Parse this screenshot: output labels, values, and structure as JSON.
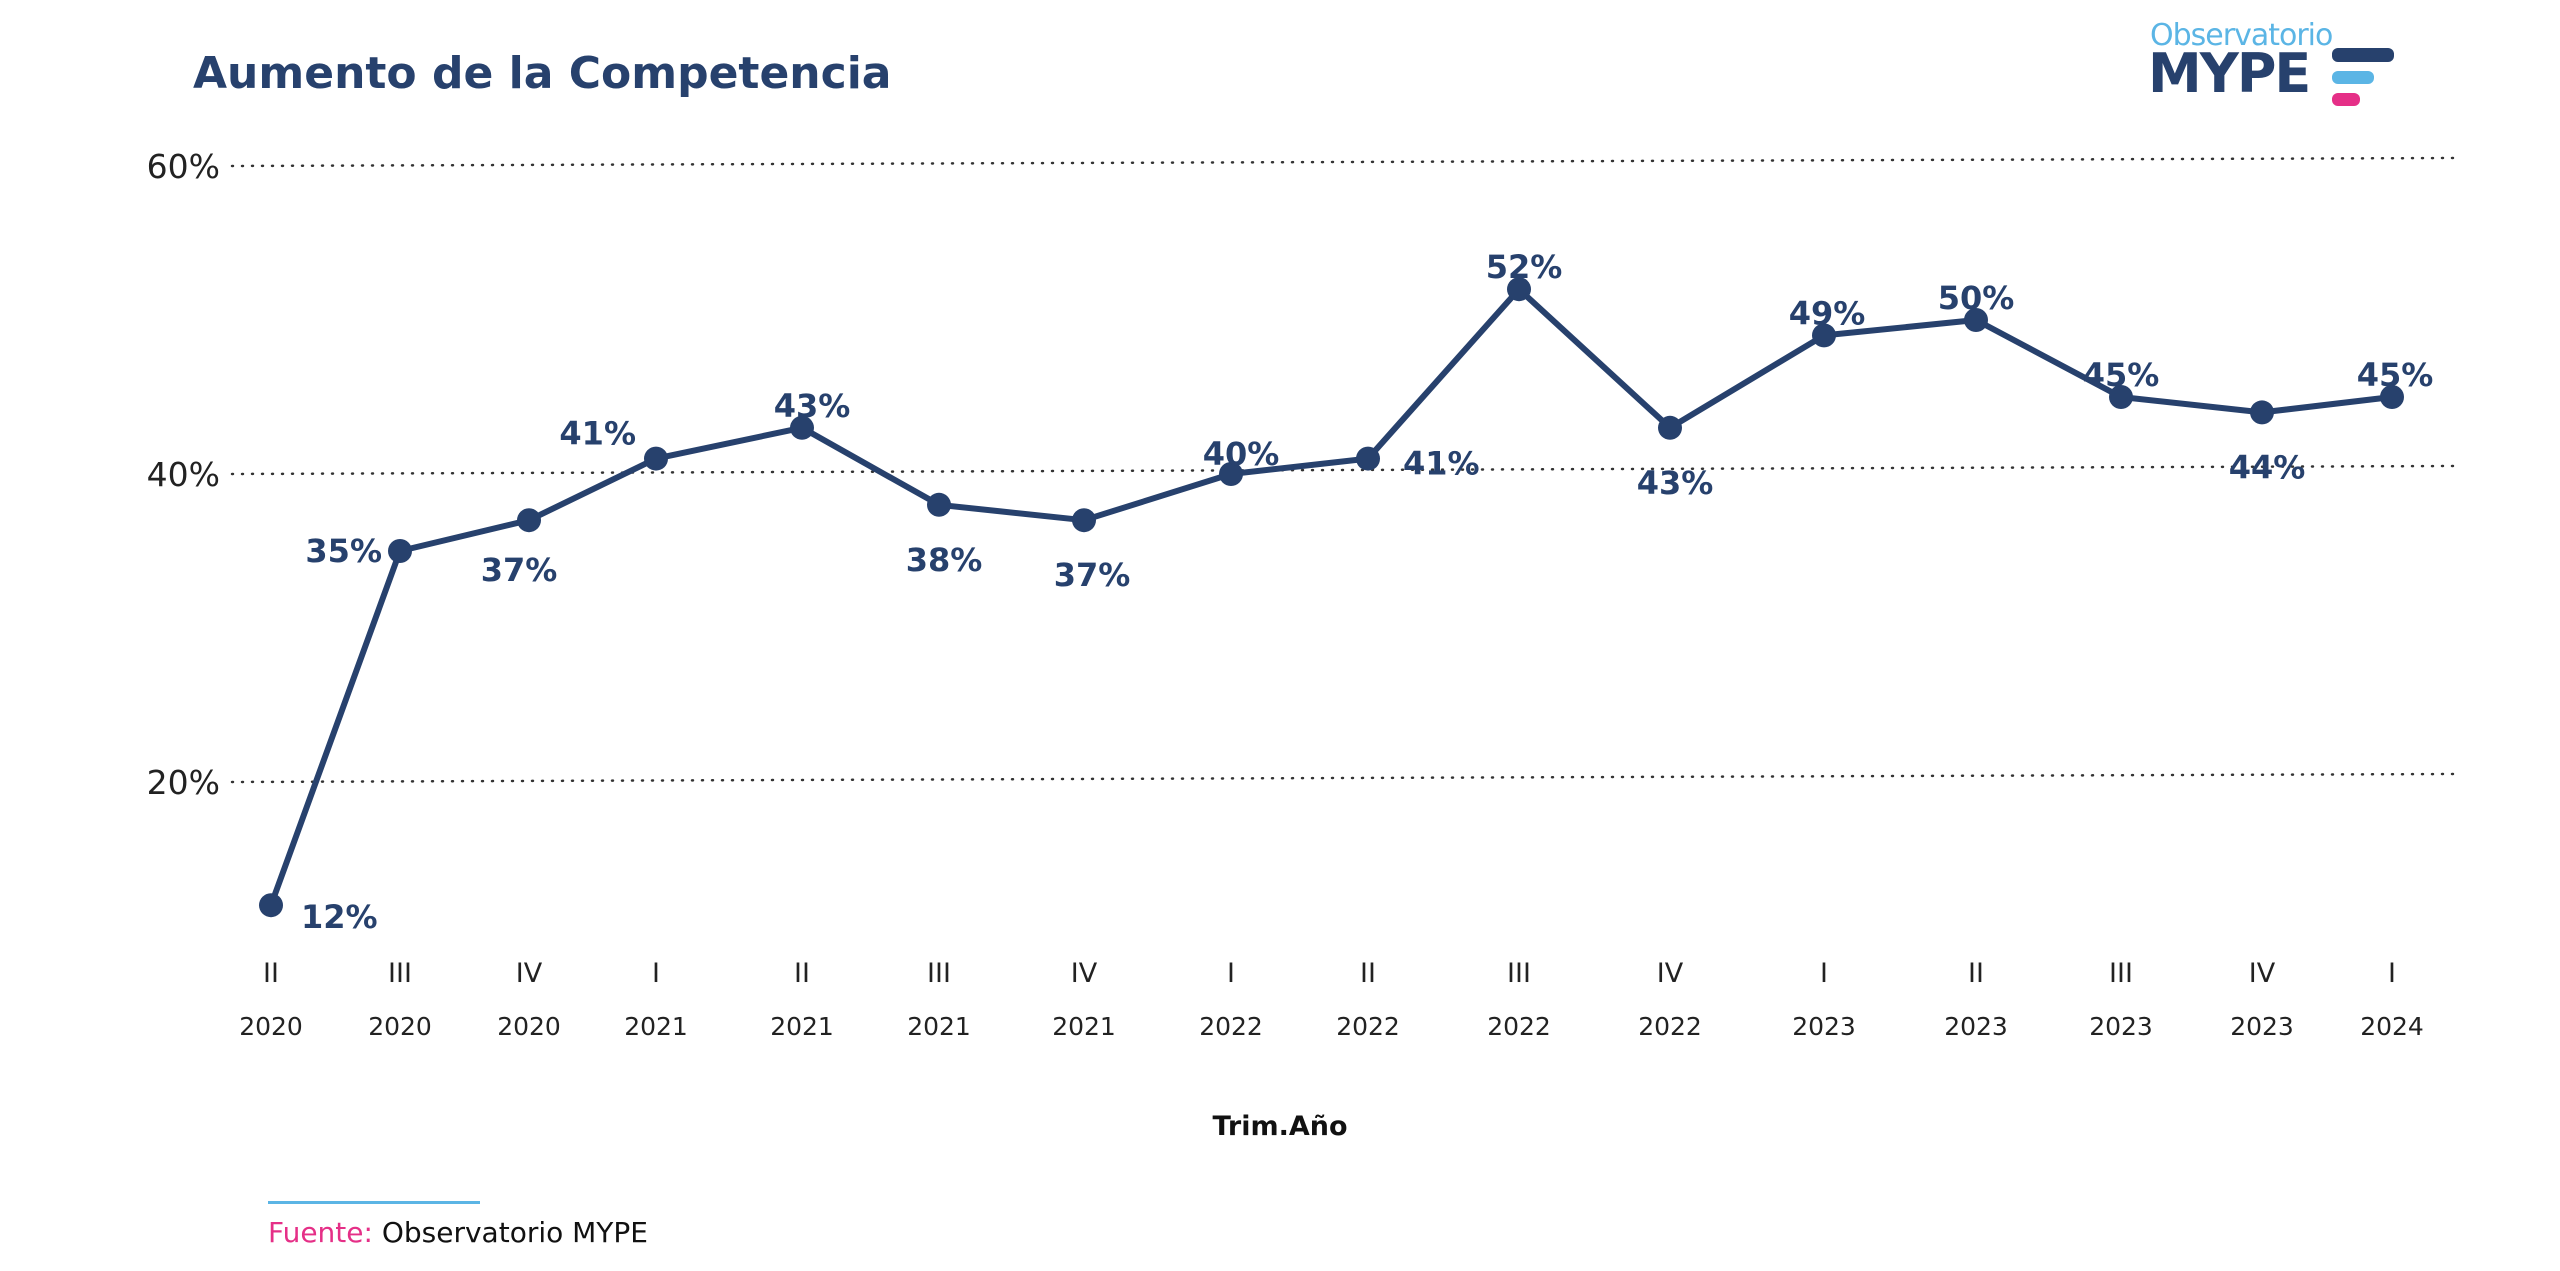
{
  "title": "Aumento de la Competencia",
  "logo": {
    "top": "Observatorio",
    "bottom": "MYPE",
    "colors": [
      "#27416d",
      "#5bb5e5",
      "#e52f87"
    ]
  },
  "source": {
    "label": "Fuente:",
    "text": "Observatorio MYPE"
  },
  "chart_data": {
    "type": "line",
    "title": "Aumento de la Competencia",
    "xlabel": "Trim.Año",
    "ylabel": "",
    "ylim": [
      0,
      60
    ],
    "y_ticks": [
      "20%",
      "40%",
      "60%"
    ],
    "grid": "horizontal dotted",
    "line_color": "#27416d",
    "categories": [
      {
        "q": "II",
        "y": "2020"
      },
      {
        "q": "III",
        "y": "2020"
      },
      {
        "q": "IV",
        "y": "2020"
      },
      {
        "q": "I",
        "y": "2021"
      },
      {
        "q": "II",
        "y": "2021"
      },
      {
        "q": "III",
        "y": "2021"
      },
      {
        "q": "IV",
        "y": "2021"
      },
      {
        "q": "I",
        "y": "2022"
      },
      {
        "q": "II",
        "y": "2022"
      },
      {
        "q": "III",
        "y": "2022"
      },
      {
        "q": "IV",
        "y": "2022"
      },
      {
        "q": "I",
        "y": "2023"
      },
      {
        "q": "II",
        "y": "2023"
      },
      {
        "q": "III",
        "y": "2023"
      },
      {
        "q": "IV",
        "y": "2023"
      },
      {
        "q": "I",
        "y": "2024"
      }
    ],
    "values": [
      12,
      35,
      37,
      41,
      43,
      38,
      37,
      40,
      41,
      52,
      43,
      49,
      50,
      45,
      44,
      45
    ],
    "labels": [
      "12%",
      "35%",
      "37%",
      "41%",
      "43%",
      "38%",
      "37%",
      "40%",
      "41%",
      "52%",
      "43%",
      "49%",
      "50%",
      "45%",
      "44%",
      "45%"
    ]
  }
}
